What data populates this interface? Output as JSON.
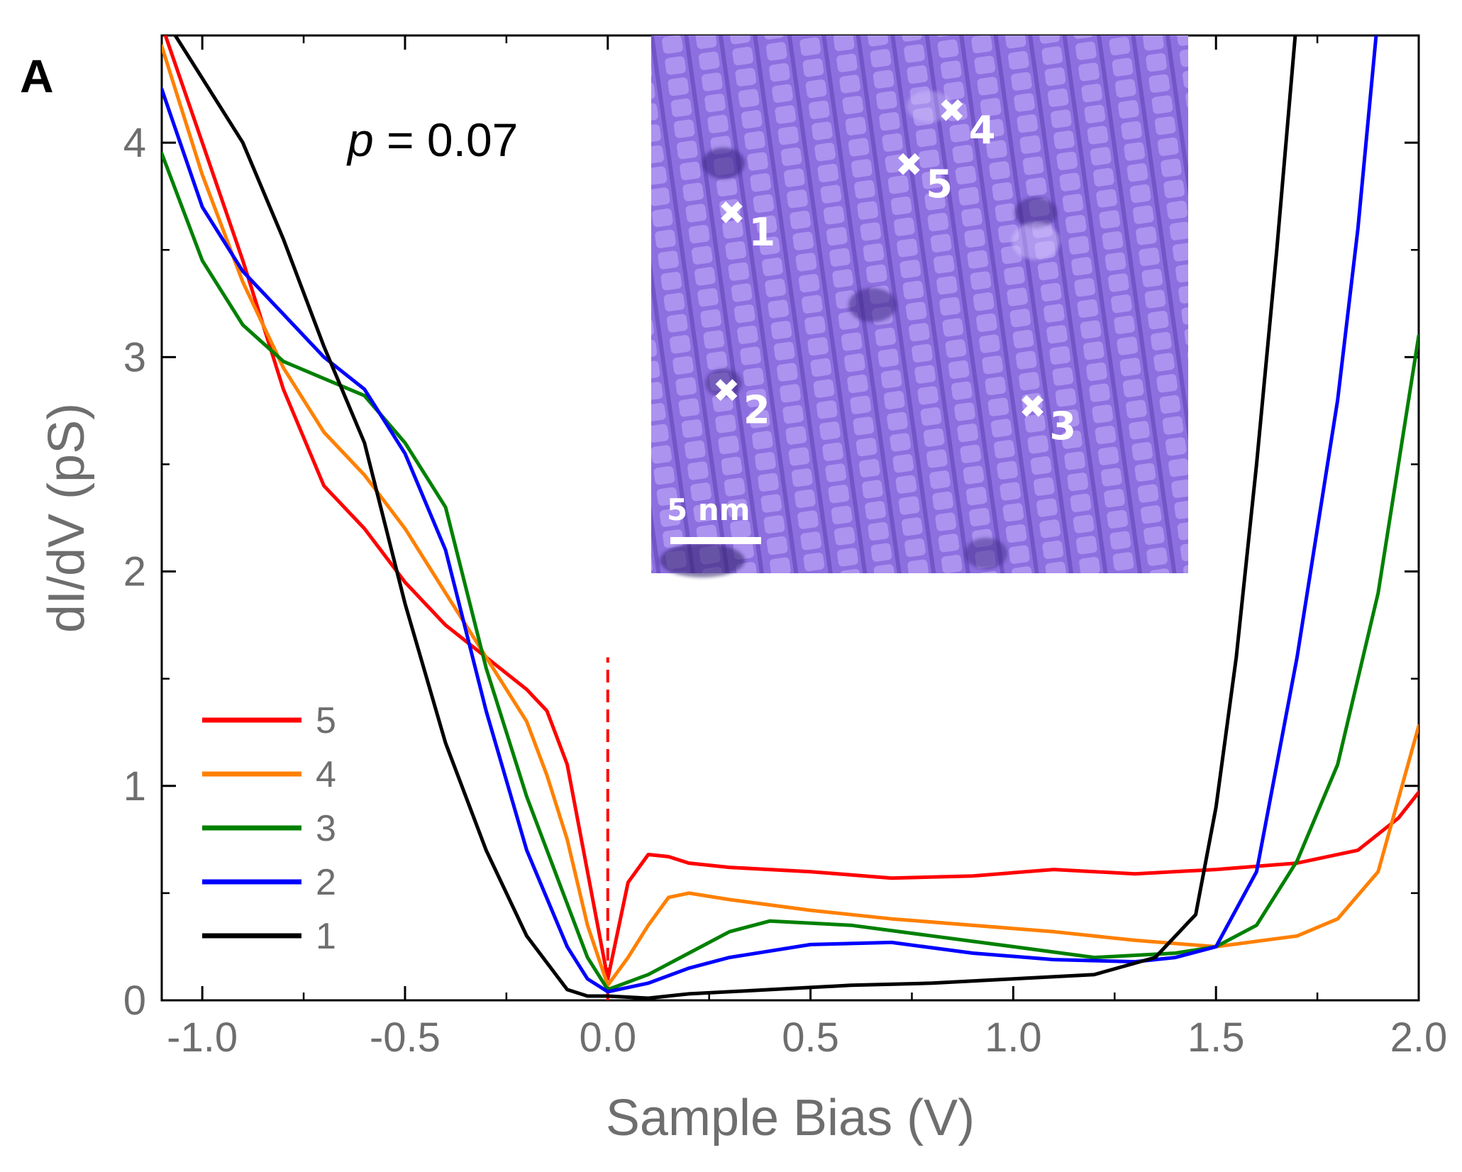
{
  "chart_data": {
    "type": "line",
    "panel_label": "A",
    "annotation": {
      "var": "p",
      "rest": " = 0.07"
    },
    "xlabel": "Sample Bias (V)",
    "ylabel": "dI/dV (pS)",
    "xlim": [
      -1.1,
      2.0
    ],
    "ylim": [
      0,
      4.5
    ],
    "x_ticks": [
      -1.0,
      -0.5,
      0.0,
      0.5,
      1.0,
      1.5,
      2.0
    ],
    "x_tick_labels": [
      "-1.0",
      "-0.5",
      "0.0",
      "0.5",
      "1.0",
      "1.5",
      "2.0"
    ],
    "y_ticks": [
      0,
      1,
      2,
      3,
      4
    ],
    "y_tick_labels": [
      "0",
      "1",
      "2",
      "3",
      "4"
    ],
    "fermi_marker": {
      "x": 0.0,
      "y_range": [
        0,
        1.6
      ],
      "color": "#ff0000",
      "style": "dashed"
    },
    "legend_position": "lower-left",
    "series": [
      {
        "name": "5",
        "color": "#ff0000",
        "x": [
          -1.1,
          -1.0,
          -0.9,
          -0.8,
          -0.7,
          -0.6,
          -0.5,
          -0.4,
          -0.3,
          -0.2,
          -0.15,
          -0.1,
          -0.05,
          0.0,
          0.05,
          0.1,
          0.15,
          0.2,
          0.3,
          0.5,
          0.7,
          0.9,
          1.1,
          1.3,
          1.5,
          1.7,
          1.85,
          1.95,
          2.0
        ],
        "y": [
          4.55,
          4.0,
          3.45,
          2.85,
          2.4,
          2.2,
          1.95,
          1.75,
          1.6,
          1.45,
          1.35,
          1.1,
          0.6,
          0.1,
          0.55,
          0.68,
          0.67,
          0.64,
          0.62,
          0.6,
          0.57,
          0.58,
          0.61,
          0.59,
          0.61,
          0.64,
          0.7,
          0.85,
          0.97
        ]
      },
      {
        "name": "4",
        "color": "#ff8000",
        "x": [
          -1.1,
          -1.0,
          -0.9,
          -0.8,
          -0.7,
          -0.6,
          -0.5,
          -0.4,
          -0.3,
          -0.2,
          -0.15,
          -0.1,
          -0.05,
          0.0,
          0.05,
          0.1,
          0.15,
          0.2,
          0.3,
          0.5,
          0.7,
          0.9,
          1.1,
          1.3,
          1.5,
          1.7,
          1.8,
          1.9,
          2.0
        ],
        "y": [
          4.45,
          3.85,
          3.35,
          2.95,
          2.65,
          2.45,
          2.2,
          1.9,
          1.6,
          1.3,
          1.05,
          0.75,
          0.35,
          0.07,
          0.2,
          0.35,
          0.48,
          0.5,
          0.47,
          0.42,
          0.38,
          0.35,
          0.32,
          0.28,
          0.25,
          0.3,
          0.38,
          0.6,
          1.28
        ]
      },
      {
        "name": "3",
        "color": "#008000",
        "x": [
          -1.1,
          -1.0,
          -0.9,
          -0.8,
          -0.7,
          -0.6,
          -0.5,
          -0.4,
          -0.3,
          -0.2,
          -0.1,
          -0.05,
          0.0,
          0.1,
          0.2,
          0.3,
          0.4,
          0.6,
          0.8,
          1.0,
          1.2,
          1.4,
          1.5,
          1.6,
          1.7,
          1.8,
          1.9,
          1.95,
          2.0
        ],
        "y": [
          3.95,
          3.45,
          3.15,
          2.98,
          2.9,
          2.82,
          2.6,
          2.3,
          1.55,
          0.95,
          0.45,
          0.2,
          0.05,
          0.12,
          0.22,
          0.32,
          0.37,
          0.35,
          0.3,
          0.25,
          0.2,
          0.22,
          0.25,
          0.35,
          0.65,
          1.1,
          1.9,
          2.5,
          3.1
        ]
      },
      {
        "name": "2",
        "color": "#0000ff",
        "x": [
          -1.1,
          -1.0,
          -0.9,
          -0.8,
          -0.7,
          -0.6,
          -0.5,
          -0.4,
          -0.3,
          -0.2,
          -0.1,
          -0.05,
          0.0,
          0.1,
          0.2,
          0.3,
          0.5,
          0.7,
          0.9,
          1.1,
          1.3,
          1.4,
          1.5,
          1.6,
          1.7,
          1.8,
          1.85,
          1.9
        ],
        "y": [
          4.25,
          3.7,
          3.4,
          3.2,
          3.0,
          2.85,
          2.55,
          2.1,
          1.35,
          0.7,
          0.25,
          0.1,
          0.04,
          0.08,
          0.15,
          0.2,
          0.26,
          0.27,
          0.22,
          0.19,
          0.18,
          0.2,
          0.25,
          0.6,
          1.6,
          2.8,
          3.6,
          4.6
        ]
      },
      {
        "name": "1",
        "color": "#000000",
        "x": [
          -1.1,
          -1.0,
          -0.9,
          -0.8,
          -0.7,
          -0.6,
          -0.5,
          -0.4,
          -0.3,
          -0.2,
          -0.1,
          -0.05,
          0.0,
          0.1,
          0.2,
          0.4,
          0.6,
          0.8,
          1.0,
          1.2,
          1.35,
          1.45,
          1.5,
          1.55,
          1.6,
          1.65,
          1.7
        ],
        "y": [
          4.6,
          4.3,
          4.0,
          3.55,
          3.05,
          2.6,
          1.85,
          1.2,
          0.7,
          0.3,
          0.05,
          0.02,
          0.02,
          0.01,
          0.03,
          0.05,
          0.07,
          0.08,
          0.1,
          0.12,
          0.2,
          0.4,
          0.9,
          1.6,
          2.5,
          3.5,
          4.6
        ]
      }
    ],
    "inset": {
      "scale_bar_label": "5 nm",
      "marker_symbol": "✖",
      "markers": [
        {
          "label": "1",
          "u": 0.15,
          "v": 0.33
        },
        {
          "label": "2",
          "u": 0.14,
          "v": 0.66
        },
        {
          "label": "3",
          "u": 0.71,
          "v": 0.69
        },
        {
          "label": "4",
          "u": 0.56,
          "v": 0.14
        },
        {
          "label": "5",
          "u": 0.48,
          "v": 0.24
        }
      ]
    }
  }
}
